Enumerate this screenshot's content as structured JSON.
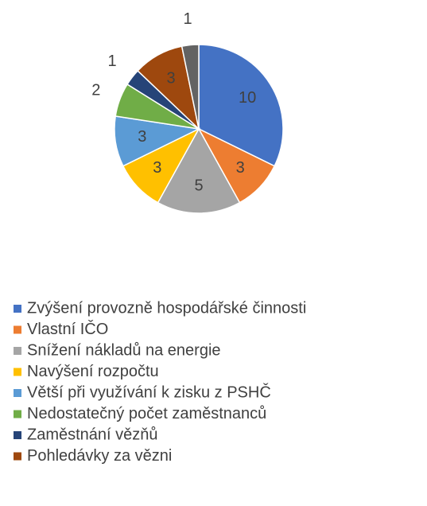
{
  "chart_data": {
    "type": "pie",
    "categories": [
      "Zvýšení provozně hospodářské činnosti",
      "Vlastní IČO",
      "Snížení nákladů na energie",
      "Navýšení rozpočtu",
      "Větší při využívání k zisku z PSHČ",
      "Nedostatečný počet zaměstnanců",
      "Zaměstnání vězňů",
      "Pohledávky za vězni",
      null
    ],
    "values": [
      10,
      3,
      5,
      3,
      3,
      2,
      1,
      3,
      1
    ],
    "colors": [
      "#4472c4",
      "#ed7d31",
      "#a5a5a5",
      "#ffc000",
      "#5b9bd5",
      "#70ad47",
      "#264478",
      "#9e480e",
      "#636363"
    ],
    "legend": "bottom"
  }
}
